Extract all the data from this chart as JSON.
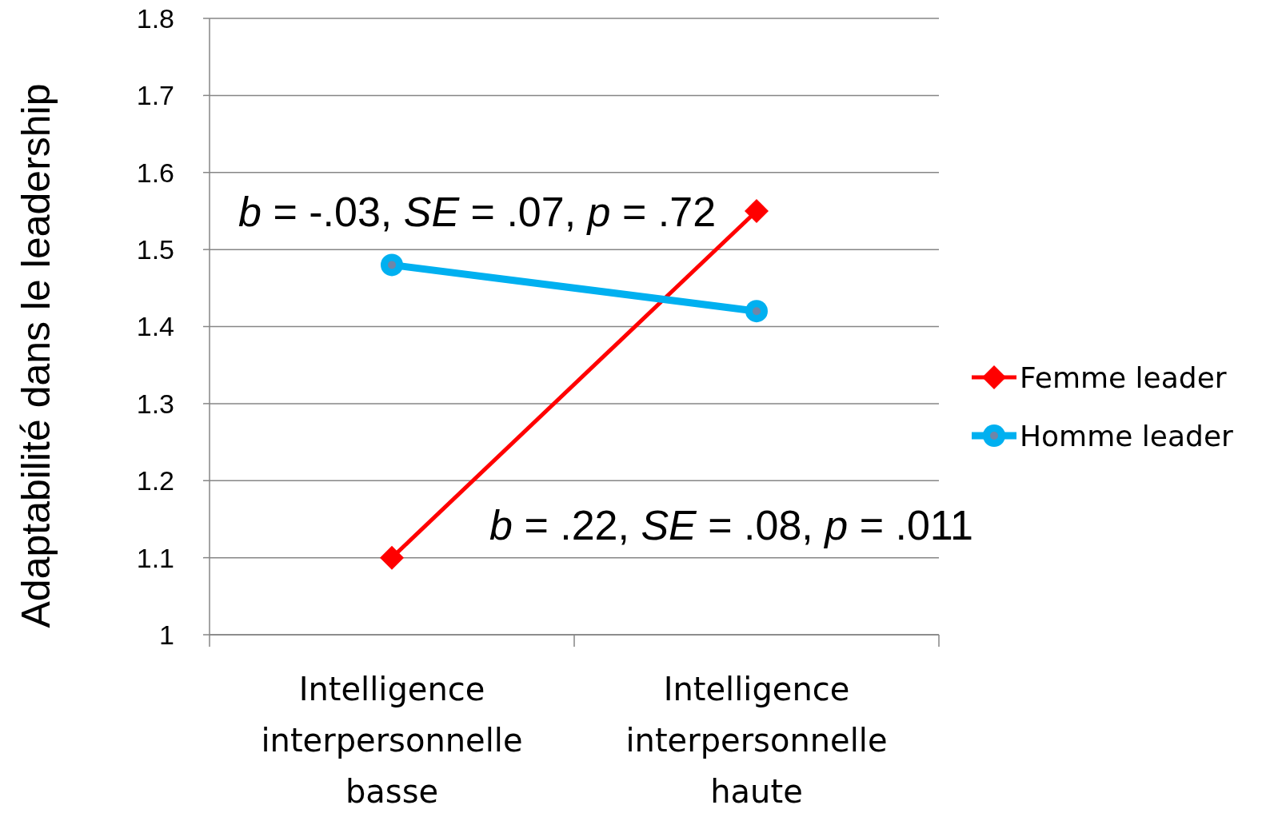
{
  "chart_data": {
    "type": "line",
    "ylabel": "Adaptabilité dans le leadership",
    "categories": [
      "Intelligence interpersonnelle basse",
      "Intelligence interpersonnelle haute"
    ],
    "series": [
      {
        "name": "Femme leader",
        "color": "#ff0000",
        "values": [
          1.1,
          1.55
        ],
        "marker": "diamond"
      },
      {
        "name": "Homme leader",
        "color": "#00b0f0",
        "values": [
          1.48,
          1.42
        ],
        "marker": "circle"
      }
    ],
    "ylim": [
      1,
      1.8
    ],
    "yticks": [
      1,
      1.1,
      1.2,
      1.3,
      1.4,
      1.5,
      1.6,
      1.7,
      1.8
    ],
    "grid": "y",
    "legend": "right",
    "annotations": [
      "b = -.03, SE = .07, p = .72",
      "b = .22, SE = .08, p = .011"
    ]
  }
}
